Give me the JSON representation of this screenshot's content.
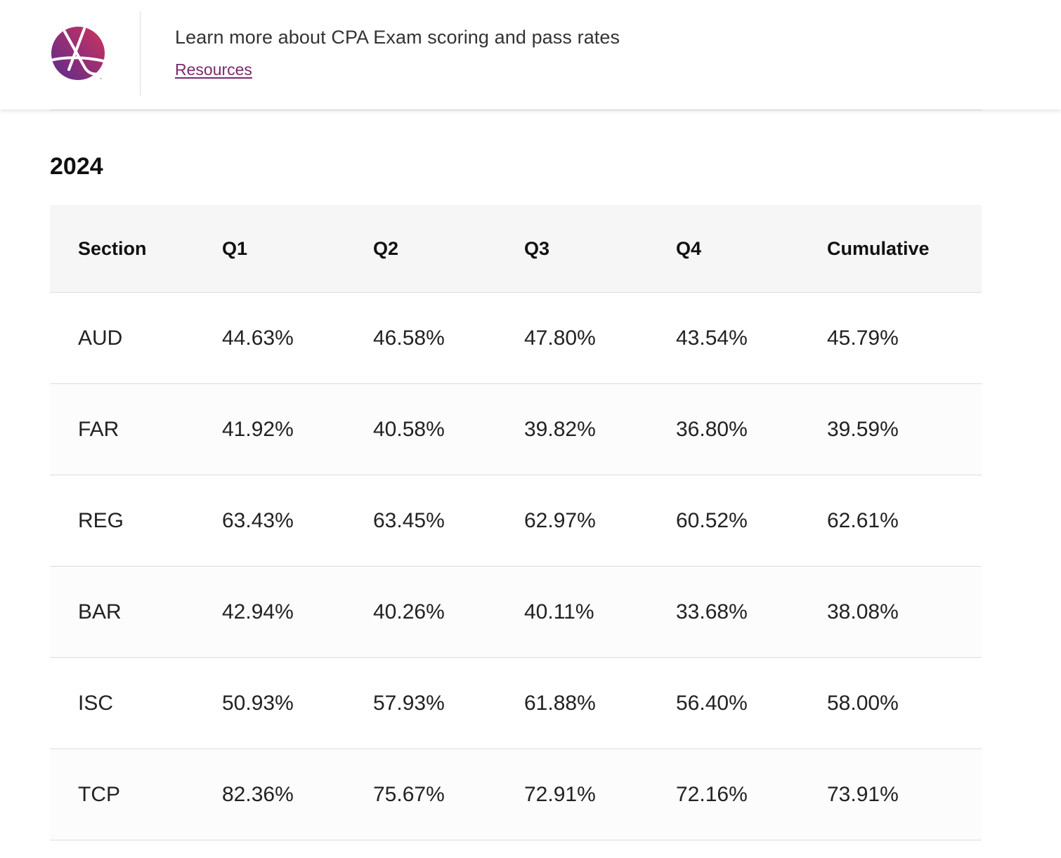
{
  "banner": {
    "logo_icon": "aicpa-logo-icon",
    "logo_colors": {
      "from": "#6b2d84",
      "to": "#c0305a"
    },
    "message": "Learn more about CPA Exam scoring and pass rates",
    "link_label": "Resources",
    "link_color": "#7a2a6c"
  },
  "year": "2024",
  "table": {
    "columns": [
      "Section",
      "Q1",
      "Q2",
      "Q3",
      "Q4",
      "Cumulative"
    ],
    "rows": [
      [
        "AUD",
        "44.63%",
        "46.58%",
        "47.80%",
        "43.54%",
        "45.79%"
      ],
      [
        "FAR",
        "41.92%",
        "40.58%",
        "39.82%",
        "36.80%",
        "39.59%"
      ],
      [
        "REG",
        "63.43%",
        "63.45%",
        "62.97%",
        "60.52%",
        "62.61%"
      ],
      [
        "BAR",
        "42.94%",
        "40.26%",
        "40.11%",
        "33.68%",
        "38.08%"
      ],
      [
        "ISC",
        "50.93%",
        "57.93%",
        "61.88%",
        "56.40%",
        "58.00%"
      ],
      [
        "TCP",
        "82.36%",
        "75.67%",
        "72.91%",
        "72.16%",
        "73.91%"
      ]
    ]
  }
}
